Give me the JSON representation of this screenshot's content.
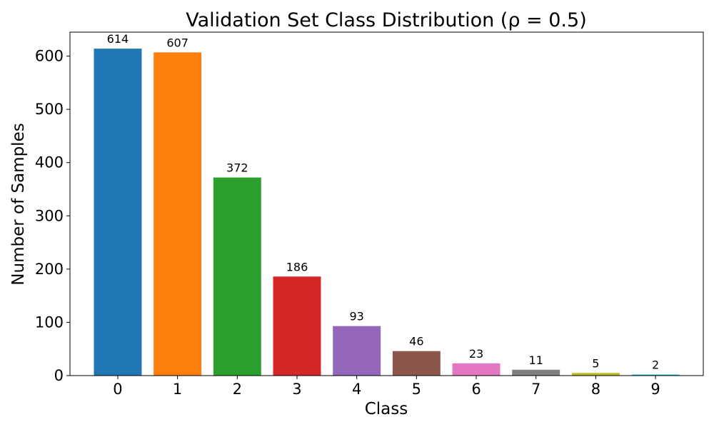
{
  "chart_data": {
    "type": "bar",
    "title": "Validation Set Class Distribution (ρ = 0.5)",
    "xlabel": "Class",
    "ylabel": "Number of Samples",
    "categories": [
      "0",
      "1",
      "2",
      "3",
      "4",
      "5",
      "6",
      "7",
      "8",
      "9"
    ],
    "values": [
      614,
      607,
      372,
      186,
      93,
      46,
      23,
      11,
      5,
      2
    ],
    "data_labels": [
      "614",
      "607",
      "372",
      "186",
      "93",
      "46",
      "23",
      "11",
      "5",
      "2"
    ],
    "colors": [
      "#1f77b4",
      "#ff7f0e",
      "#2ca02c",
      "#d62728",
      "#9467bd",
      "#8c564b",
      "#e377c2",
      "#7f7f7f",
      "#bcbd22",
      "#17becf"
    ],
    "ylim": [
      0,
      645
    ],
    "yticks": [
      0,
      100,
      200,
      300,
      400,
      500,
      600
    ],
    "grid": false,
    "legend": "none"
  }
}
